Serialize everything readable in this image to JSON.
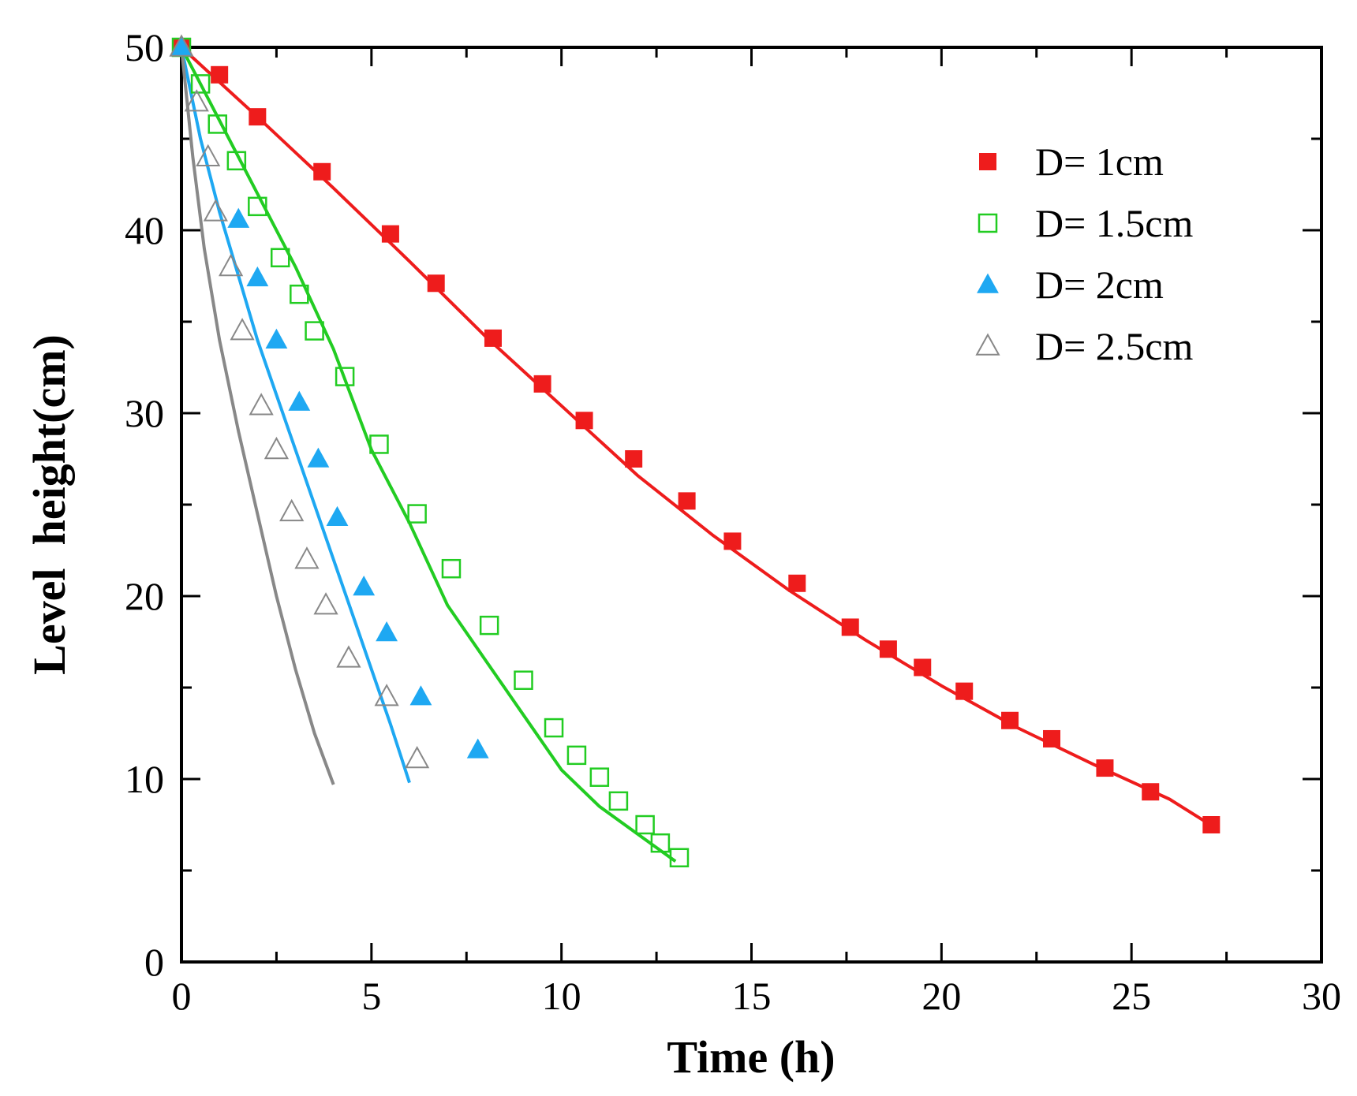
{
  "chart_data": {
    "type": "scatter",
    "title": "",
    "xlabel": "Time (h)",
    "ylabel": "Level  height(cm)",
    "xlim": [
      0,
      30
    ],
    "ylim": [
      0,
      50
    ],
    "xticks": [
      0,
      5,
      10,
      15,
      20,
      25,
      30
    ],
    "xtick_labels": [
      "0",
      "5",
      "10",
      "15",
      "20",
      "25",
      "30"
    ],
    "yticks": [
      0,
      10,
      20,
      30,
      40,
      50
    ],
    "ytick_labels": [
      "0",
      "10",
      "20",
      "30",
      "40",
      "50"
    ],
    "grid": false,
    "legend_position": "top-right",
    "series": [
      {
        "name": "D= 1cm",
        "color": "#ee1c1c",
        "marker": "square-filled",
        "points": [
          {
            "x": 0.0,
            "y": 50.0
          },
          {
            "x": 1.0,
            "y": 48.5
          },
          {
            "x": 2.0,
            "y": 46.2
          },
          {
            "x": 3.7,
            "y": 43.2
          },
          {
            "x": 5.5,
            "y": 39.8
          },
          {
            "x": 6.7,
            "y": 37.1
          },
          {
            "x": 8.2,
            "y": 34.1
          },
          {
            "x": 9.5,
            "y": 31.6
          },
          {
            "x": 10.6,
            "y": 29.6
          },
          {
            "x": 11.9,
            "y": 27.5
          },
          {
            "x": 13.3,
            "y": 25.2
          },
          {
            "x": 14.5,
            "y": 23.0
          },
          {
            "x": 16.2,
            "y": 20.7
          },
          {
            "x": 17.6,
            "y": 18.3
          },
          {
            "x": 18.6,
            "y": 17.1
          },
          {
            "x": 19.5,
            "y": 16.1
          },
          {
            "x": 20.6,
            "y": 14.8
          },
          {
            "x": 21.8,
            "y": 13.2
          },
          {
            "x": 22.9,
            "y": 12.2
          },
          {
            "x": 24.3,
            "y": 10.6
          },
          {
            "x": 25.5,
            "y": 9.3
          },
          {
            "x": 27.1,
            "y": 7.5
          }
        ],
        "fit_line": [
          {
            "x": 0,
            "y": 50
          },
          {
            "x": 2,
            "y": 46.2
          },
          {
            "x": 4,
            "y": 42.3
          },
          {
            "x": 6,
            "y": 38.3
          },
          {
            "x": 8,
            "y": 34.2
          },
          {
            "x": 10,
            "y": 30.4
          },
          {
            "x": 12,
            "y": 26.6
          },
          {
            "x": 14,
            "y": 23.3
          },
          {
            "x": 16,
            "y": 20.3
          },
          {
            "x": 18,
            "y": 17.6
          },
          {
            "x": 20,
            "y": 15.1
          },
          {
            "x": 22,
            "y": 12.8
          },
          {
            "x": 24,
            "y": 10.8
          },
          {
            "x": 26,
            "y": 8.9
          },
          {
            "x": 27,
            "y": 7.6
          }
        ]
      },
      {
        "name": "D= 1.5cm",
        "color": "#22cc22",
        "marker": "square-open",
        "points": [
          {
            "x": 0.0,
            "y": 50.0
          },
          {
            "x": 0.5,
            "y": 48.0
          },
          {
            "x": 0.95,
            "y": 45.8
          },
          {
            "x": 1.45,
            "y": 43.8
          },
          {
            "x": 2.0,
            "y": 41.3
          },
          {
            "x": 2.6,
            "y": 38.5
          },
          {
            "x": 3.1,
            "y": 36.5
          },
          {
            "x": 3.5,
            "y": 34.5
          },
          {
            "x": 4.3,
            "y": 32.0
          },
          {
            "x": 5.2,
            "y": 28.3
          },
          {
            "x": 6.2,
            "y": 24.5
          },
          {
            "x": 7.1,
            "y": 21.5
          },
          {
            "x": 8.1,
            "y": 18.4
          },
          {
            "x": 9.0,
            "y": 15.4
          },
          {
            "x": 9.8,
            "y": 12.8
          },
          {
            "x": 10.4,
            "y": 11.3
          },
          {
            "x": 11.0,
            "y": 10.1
          },
          {
            "x": 11.5,
            "y": 8.8
          },
          {
            "x": 12.2,
            "y": 7.5
          },
          {
            "x": 12.6,
            "y": 6.5
          },
          {
            "x": 13.1,
            "y": 5.7
          }
        ],
        "fit_line": [
          {
            "x": 0,
            "y": 50
          },
          {
            "x": 1,
            "y": 46
          },
          {
            "x": 2,
            "y": 42
          },
          {
            "x": 3,
            "y": 38
          },
          {
            "x": 4,
            "y": 33.5
          },
          {
            "x": 5,
            "y": 28
          },
          {
            "x": 6,
            "y": 24
          },
          {
            "x": 7,
            "y": 19.5
          },
          {
            "x": 8,
            "y": 16.5
          },
          {
            "x": 9,
            "y": 13.5
          },
          {
            "x": 10,
            "y": 10.5
          },
          {
            "x": 11,
            "y": 8.5
          },
          {
            "x": 12,
            "y": 7
          },
          {
            "x": 13,
            "y": 5.5
          }
        ]
      },
      {
        "name": "D= 2cm",
        "color": "#1ea8f2",
        "marker": "triangle-filled",
        "points": [
          {
            "x": 0.0,
            "y": 50.0
          },
          {
            "x": 1.5,
            "y": 40.6
          },
          {
            "x": 2.0,
            "y": 37.4
          },
          {
            "x": 2.5,
            "y": 34.0
          },
          {
            "x": 3.1,
            "y": 30.6
          },
          {
            "x": 3.6,
            "y": 27.5
          },
          {
            "x": 4.1,
            "y": 24.3
          },
          {
            "x": 4.8,
            "y": 20.5
          },
          {
            "x": 5.4,
            "y": 18.0
          },
          {
            "x": 6.3,
            "y": 14.5
          },
          {
            "x": 7.8,
            "y": 11.6
          }
        ],
        "fit_line": [
          {
            "x": 0,
            "y": 50
          },
          {
            "x": 0.5,
            "y": 45
          },
          {
            "x": 1,
            "y": 41
          },
          {
            "x": 1.5,
            "y": 37.5
          },
          {
            "x": 2,
            "y": 34
          },
          {
            "x": 2.5,
            "y": 31
          },
          {
            "x": 3,
            "y": 28
          },
          {
            "x": 3.5,
            "y": 25
          },
          {
            "x": 4,
            "y": 22
          },
          {
            "x": 4.5,
            "y": 19
          },
          {
            "x": 5,
            "y": 16
          },
          {
            "x": 5.5,
            "y": 13
          },
          {
            "x": 6,
            "y": 9.8
          }
        ]
      },
      {
        "name": "D= 2.5cm",
        "color": "#888888",
        "marker": "triangle-open",
        "points": [
          {
            "x": 0.0,
            "y": 50.0
          },
          {
            "x": 0.4,
            "y": 47.0
          },
          {
            "x": 0.7,
            "y": 44.0
          },
          {
            "x": 0.9,
            "y": 41.0
          },
          {
            "x": 1.3,
            "y": 38.0
          },
          {
            "x": 1.6,
            "y": 34.5
          },
          {
            "x": 2.1,
            "y": 30.4
          },
          {
            "x": 2.5,
            "y": 28.0
          },
          {
            "x": 2.9,
            "y": 24.6
          },
          {
            "x": 3.3,
            "y": 22.0
          },
          {
            "x": 3.8,
            "y": 19.5
          },
          {
            "x": 4.4,
            "y": 16.6
          },
          {
            "x": 5.4,
            "y": 14.5
          },
          {
            "x": 6.2,
            "y": 11.1
          }
        ],
        "fit_line": [
          {
            "x": 0,
            "y": 50
          },
          {
            "x": 0.3,
            "y": 44
          },
          {
            "x": 0.6,
            "y": 39
          },
          {
            "x": 1,
            "y": 34
          },
          {
            "x": 1.5,
            "y": 29
          },
          {
            "x": 2,
            "y": 24.5
          },
          {
            "x": 2.5,
            "y": 20
          },
          {
            "x": 3,
            "y": 16
          },
          {
            "x": 3.5,
            "y": 12.5
          },
          {
            "x": 4,
            "y": 9.7
          }
        ]
      }
    ]
  }
}
